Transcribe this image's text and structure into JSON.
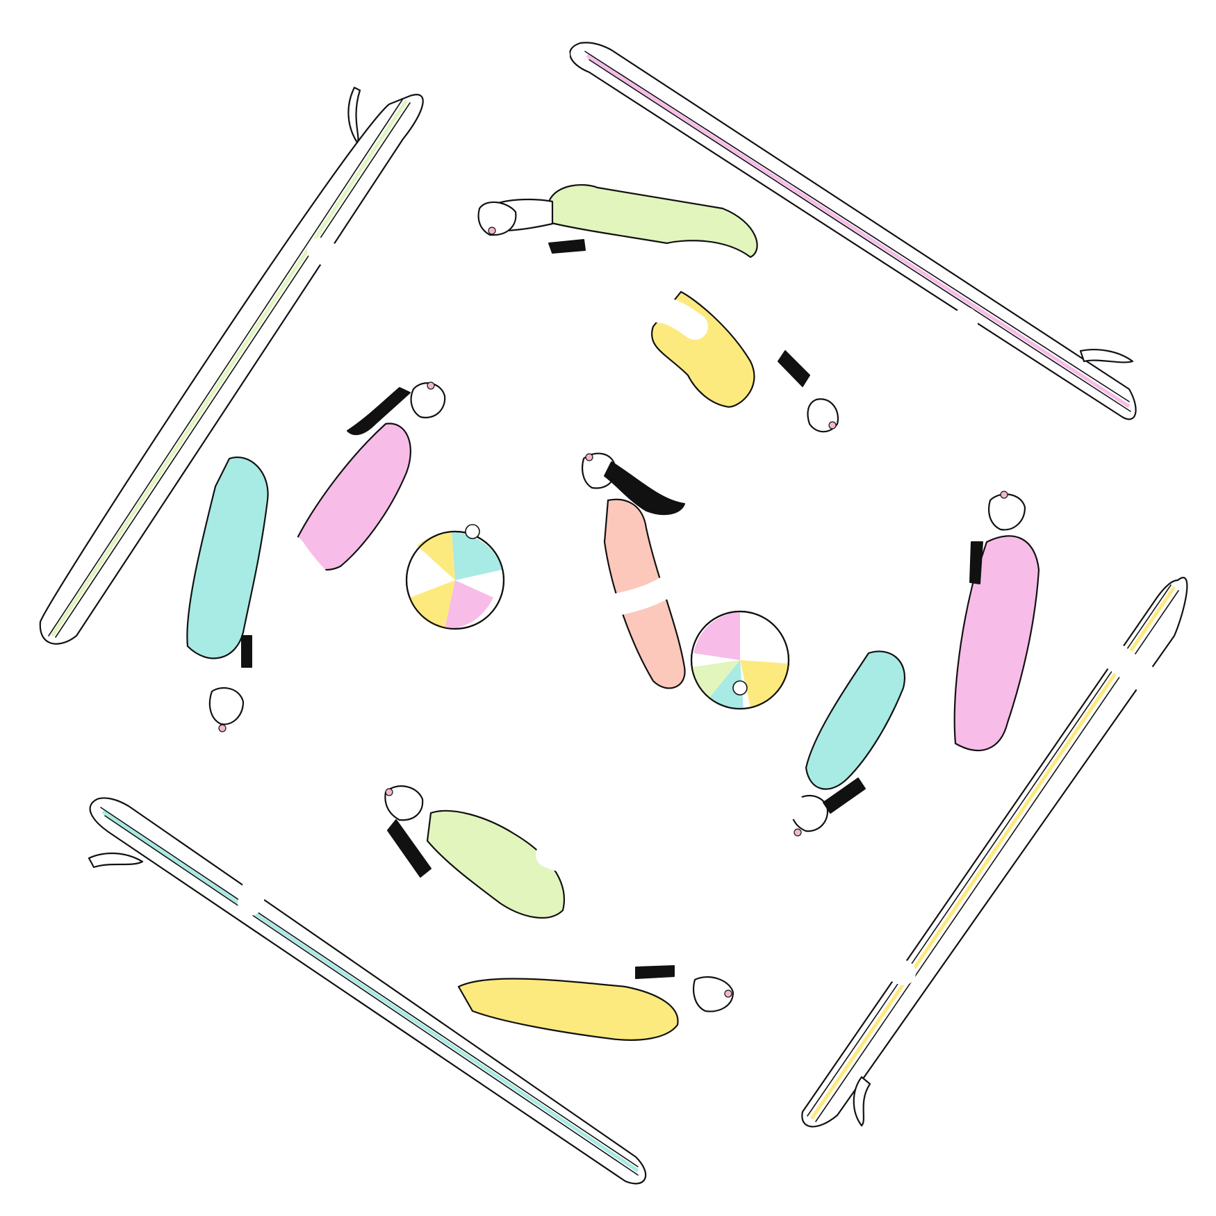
{
  "canvas": {
    "background": "#ffffff"
  },
  "palette": {
    "line": "#111111",
    "mint": "#a8eae4",
    "green": "#e1f5bd",
    "pink": "#f7bce8",
    "yellow": "#fdea7f",
    "peach": "#fbc8bb",
    "skin": "#ffffff"
  },
  "scene": {
    "subject": "cats",
    "surfboard_colors": [
      "green",
      "pink",
      "yellow",
      "mint"
    ],
    "swimmer_suit_colors": [
      "green",
      "yellow",
      "pink",
      "mint",
      "pink",
      "mint",
      "green",
      "yellow"
    ],
    "center_cat_suit": "peach",
    "beach_ball_count": 2,
    "beach_ball_colors": [
      "yellow",
      "mint",
      "pink",
      "white"
    ]
  }
}
